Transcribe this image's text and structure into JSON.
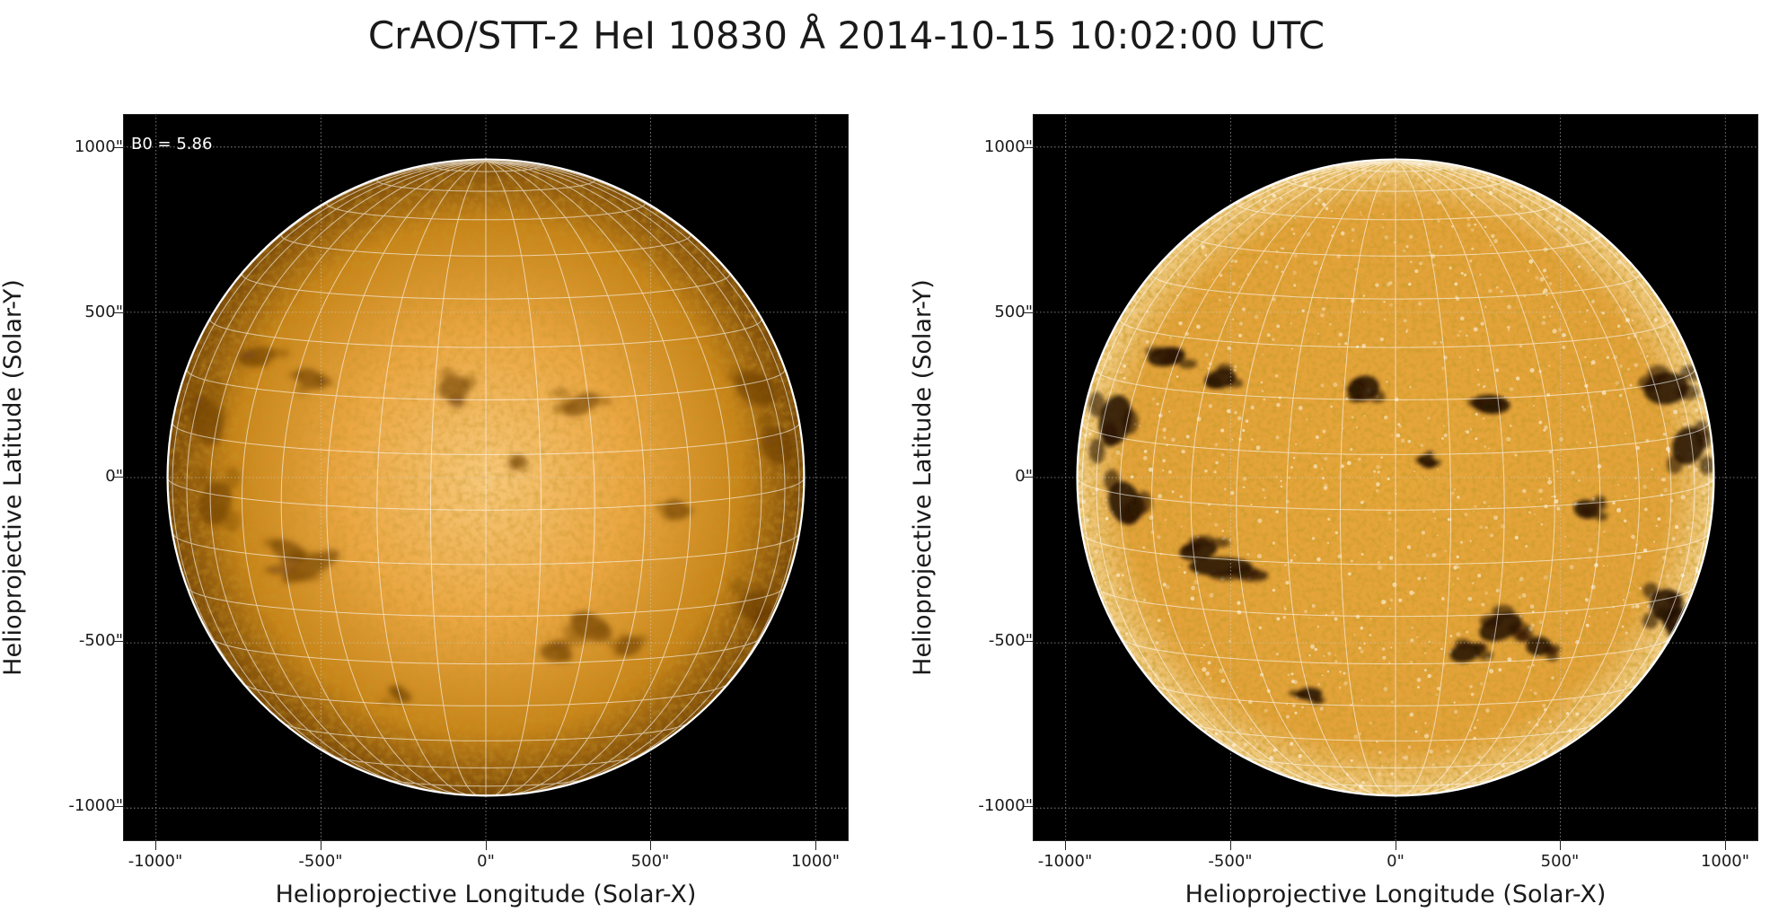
{
  "figure": {
    "title": "CrAO/STT-2 HeI 10830 Å 2014-10-15 10:02:00 UTC"
  },
  "colors": {
    "background": "#000000",
    "disk_light": "#f7c87a",
    "disk_mid": "#d48f1c",
    "disk_dark": "#6a3a00",
    "limb_line": "#ffffff",
    "grid_line": "#ffffff"
  },
  "panels": [
    {
      "name": "left",
      "annotation": "B0 = 5.86",
      "xlabel": "Helioprojective Longitude (Solar-X)",
      "ylabel": "Helioprojective Latitude (Solar-Y)",
      "xticks": [
        "-1000\"",
        "-500\"",
        "0\"",
        "500\"",
        "1000\""
      ],
      "yticks": [
        "1000\"",
        "500\"",
        "0\"",
        "-500\"",
        "-1000\""
      ],
      "style": "raw"
    },
    {
      "name": "right",
      "annotation": "",
      "xlabel": "Helioprojective Longitude (Solar-X)",
      "ylabel": "Helioprojective Latitude (Solar-Y)",
      "xticks": [
        "-1000\"",
        "-500\"",
        "0\"",
        "500\"",
        "1000\""
      ],
      "yticks": [
        "1000\"",
        "500\"",
        "0\"",
        "-500\"",
        "-1000\""
      ],
      "style": "enhanced"
    }
  ]
}
